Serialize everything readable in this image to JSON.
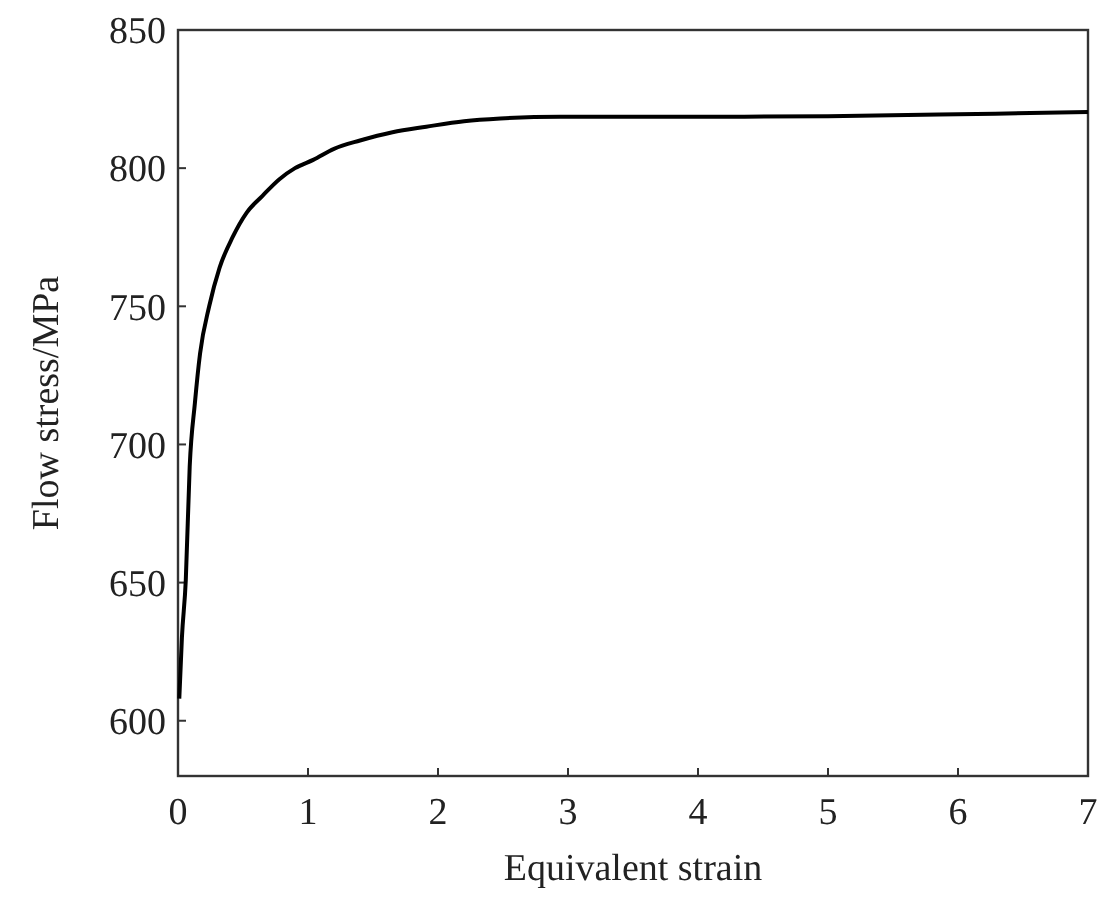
{
  "chart_data": {
    "type": "line",
    "xlabel": "Equivalent strain",
    "ylabel": "Flow stress/MPa",
    "x": [
      0.01,
      0.03,
      0.06,
      0.09,
      0.13,
      0.17,
      0.24,
      0.32,
      0.42,
      0.53,
      0.65,
      0.78,
      0.9,
      1.04,
      1.2,
      1.4,
      1.65,
      1.91,
      2.2,
      2.48,
      2.94,
      3.5,
      4,
      5,
      6,
      7
    ],
    "series": [
      {
        "color": "#000000",
        "values": [
          608,
          630,
          651,
          692,
          715,
          733,
          750,
          764,
          775,
          784,
          790,
          796,
          800,
          803,
          807,
          810,
          813,
          815,
          817,
          818,
          818.6,
          818.6,
          818.6,
          818.8,
          819.5,
          820.3
        ]
      }
    ],
    "xlim": [
      0,
      7
    ],
    "xticks": [
      0,
      1,
      2,
      3,
      4,
      5,
      6,
      7
    ],
    "ylim": [
      580,
      850
    ],
    "yticks": [
      600,
      650,
      700,
      750,
      800,
      850
    ],
    "marker": "none",
    "line_style": "solid"
  }
}
